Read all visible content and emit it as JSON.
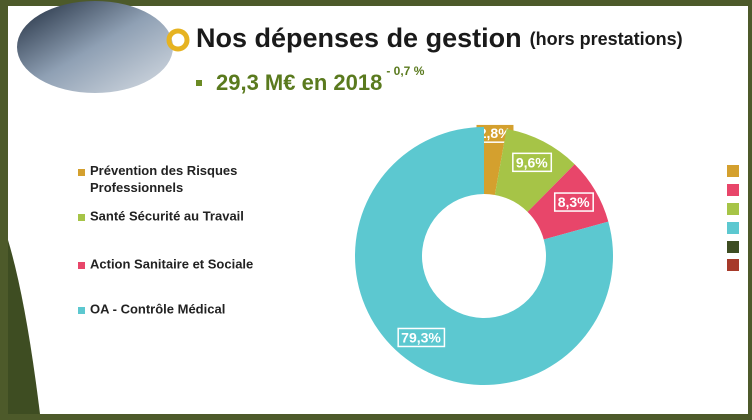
{
  "chart_data": {
    "type": "donut",
    "title": "Nos dépenses de gestion",
    "title_note": "(hors prestations)",
    "subtitle": "29,3 M€ en 2018",
    "subtitle_note": "- 0,7 %",
    "categories": [
      "Prévention des Risques Professionnels",
      "Santé Sécurité au Travail",
      "Action Sanitaire et Sociale",
      "OA - Contrôle Médical"
    ],
    "values": [
      2.8,
      9.6,
      8.3,
      79.3
    ],
    "value_labels": [
      "2,8%",
      "9,6%",
      "8,3%",
      "79,3%"
    ],
    "colors": [
      "#d4a02e",
      "#a6c447",
      "#e8466a",
      "#5cc8d0"
    ]
  }
}
